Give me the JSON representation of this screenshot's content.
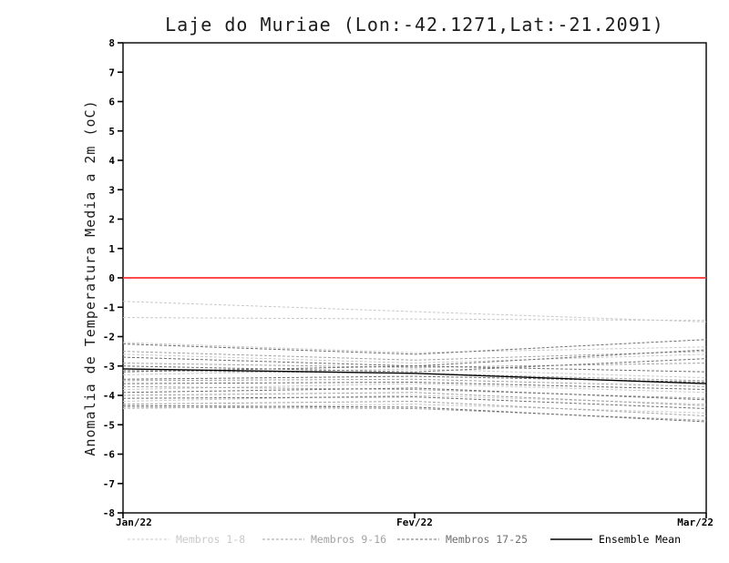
{
  "page": {
    "background": "#ffffff"
  },
  "chart_data": {
    "type": "line",
    "title": "Laje do Muriae (Lon:-42.1271,Lat:-21.2091)",
    "ylabel": "Anomalia de Temperatura Media a 2m (oC)",
    "xlabel": "",
    "x_ticks": [
      "Jan/22",
      "Fev/22",
      "Mar/22"
    ],
    "ylim": [
      -8,
      8
    ],
    "y_tick_step": 1,
    "grid": false,
    "zero_line_color": "#ff3030",
    "axis_color": "#000000",
    "legend_position": "bottom",
    "groups": [
      {
        "name": "Membros 1-8",
        "color": "#c9c9c9",
        "dash": true
      },
      {
        "name": "Membros 9-16",
        "color": "#a2a2a2",
        "dash": true
      },
      {
        "name": "Membros 17-25",
        "color": "#6f6f6f",
        "dash": true
      },
      {
        "name": "Ensemble Mean",
        "color": "#000000",
        "dash": false
      }
    ],
    "series": [
      {
        "group": 0,
        "values": [
          -0.8,
          -1.15,
          -1.5
        ]
      },
      {
        "group": 0,
        "values": [
          -1.35,
          -1.4,
          -1.45
        ]
      },
      {
        "group": 0,
        "values": [
          -2.2,
          -2.55,
          -2.35
        ]
      },
      {
        "group": 0,
        "values": [
          -2.6,
          -2.9,
          -2.6
        ]
      },
      {
        "group": 0,
        "values": [
          -3.3,
          -3.1,
          -3.4
        ]
      },
      {
        "group": 0,
        "values": [
          -3.8,
          -3.6,
          -3.9
        ]
      },
      {
        "group": 0,
        "values": [
          -4.2,
          -4.0,
          -4.3
        ]
      },
      {
        "group": 0,
        "values": [
          -4.45,
          -4.3,
          -4.6
        ]
      },
      {
        "group": 1,
        "values": [
          -2.5,
          -2.8,
          -2.5
        ]
      },
      {
        "group": 1,
        "values": [
          -2.9,
          -3.05,
          -2.9
        ]
      },
      {
        "group": 1,
        "values": [
          -3.15,
          -3.25,
          -3.5
        ]
      },
      {
        "group": 1,
        "values": [
          -3.5,
          -3.45,
          -3.7
        ]
      },
      {
        "group": 1,
        "values": [
          -3.7,
          -3.8,
          -4.1
        ]
      },
      {
        "group": 1,
        "values": [
          -4.0,
          -3.9,
          -4.35
        ]
      },
      {
        "group": 1,
        "values": [
          -4.3,
          -4.2,
          -4.7
        ]
      },
      {
        "group": 1,
        "values": [
          -4.4,
          -4.45,
          -4.85
        ]
      },
      {
        "group": 2,
        "values": [
          -2.25,
          -2.6,
          -2.1
        ]
      },
      {
        "group": 2,
        "values": [
          -2.7,
          -3.0,
          -2.45
        ]
      },
      {
        "group": 2,
        "values": [
          -3.0,
          -3.2,
          -2.75
        ]
      },
      {
        "group": 2,
        "values": [
          -3.2,
          -3.0,
          -3.2
        ]
      },
      {
        "group": 2,
        "values": [
          -3.45,
          -3.35,
          -3.55
        ]
      },
      {
        "group": 2,
        "values": [
          -3.6,
          -3.55,
          -3.8
        ]
      },
      {
        "group": 2,
        "values": [
          -3.9,
          -3.75,
          -4.15
        ]
      },
      {
        "group": 2,
        "values": [
          -4.1,
          -4.05,
          -4.45
        ]
      },
      {
        "group": 2,
        "values": [
          -4.35,
          -4.4,
          -4.9
        ]
      },
      {
        "group": 3,
        "values": [
          -3.1,
          -3.25,
          -3.6
        ]
      }
    ]
  }
}
